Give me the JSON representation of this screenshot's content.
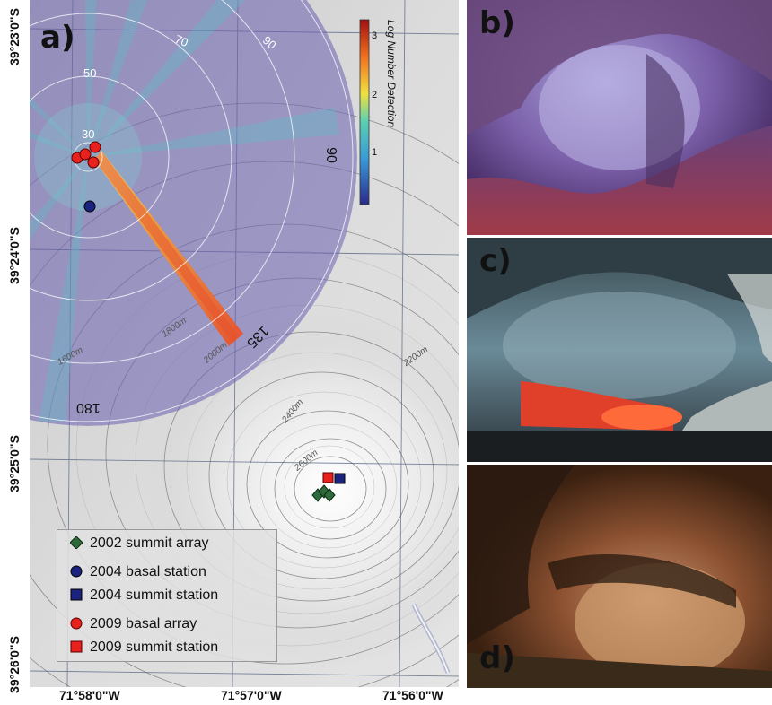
{
  "panel_labels": {
    "a": "a)",
    "b": "b)",
    "c": "c)",
    "d": "d)"
  },
  "latitude_labels": [
    "39°23'0\"S",
    "39°24'0\"S",
    "39°25'0\"S",
    "39°26'0\"S"
  ],
  "longitude_labels": [
    "71°58'0\"W",
    "71°57'0\"W",
    "71°56'0\"W"
  ],
  "radial_labels": {
    "r30": "30",
    "r50": "50",
    "r70": "70",
    "r90": "90"
  },
  "azimuth_labels": {
    "a90": "90",
    "a135": "135",
    "a180": "180"
  },
  "contour_labels": [
    "1600m",
    "1800m",
    "2000m",
    "2200m",
    "2400m",
    "2600m"
  ],
  "colorbar": {
    "title": "Log Number Detection",
    "ticks": [
      "3",
      "2",
      "1"
    ]
  },
  "legend": {
    "items": [
      {
        "label": "2002 summit array",
        "symbol": "diamond",
        "color": "#2e6b3a"
      },
      {
        "label": "2004 basal station",
        "symbol": "circle",
        "color": "#1a237e"
      },
      {
        "label": "2004 summit station",
        "symbol": "square",
        "color": "#1a237e"
      },
      {
        "label": "2009 basal array",
        "symbol": "circle",
        "color": "#e8211d"
      },
      {
        "label": "2009 summit station",
        "symbol": "square",
        "color": "#e8211d"
      }
    ]
  },
  "colors": {
    "polar_fill": "#6a5fb0",
    "beam_hot": "#e8502a",
    "beam_mid": "#f0c040",
    "beam_cool": "#5cc0c8"
  }
}
